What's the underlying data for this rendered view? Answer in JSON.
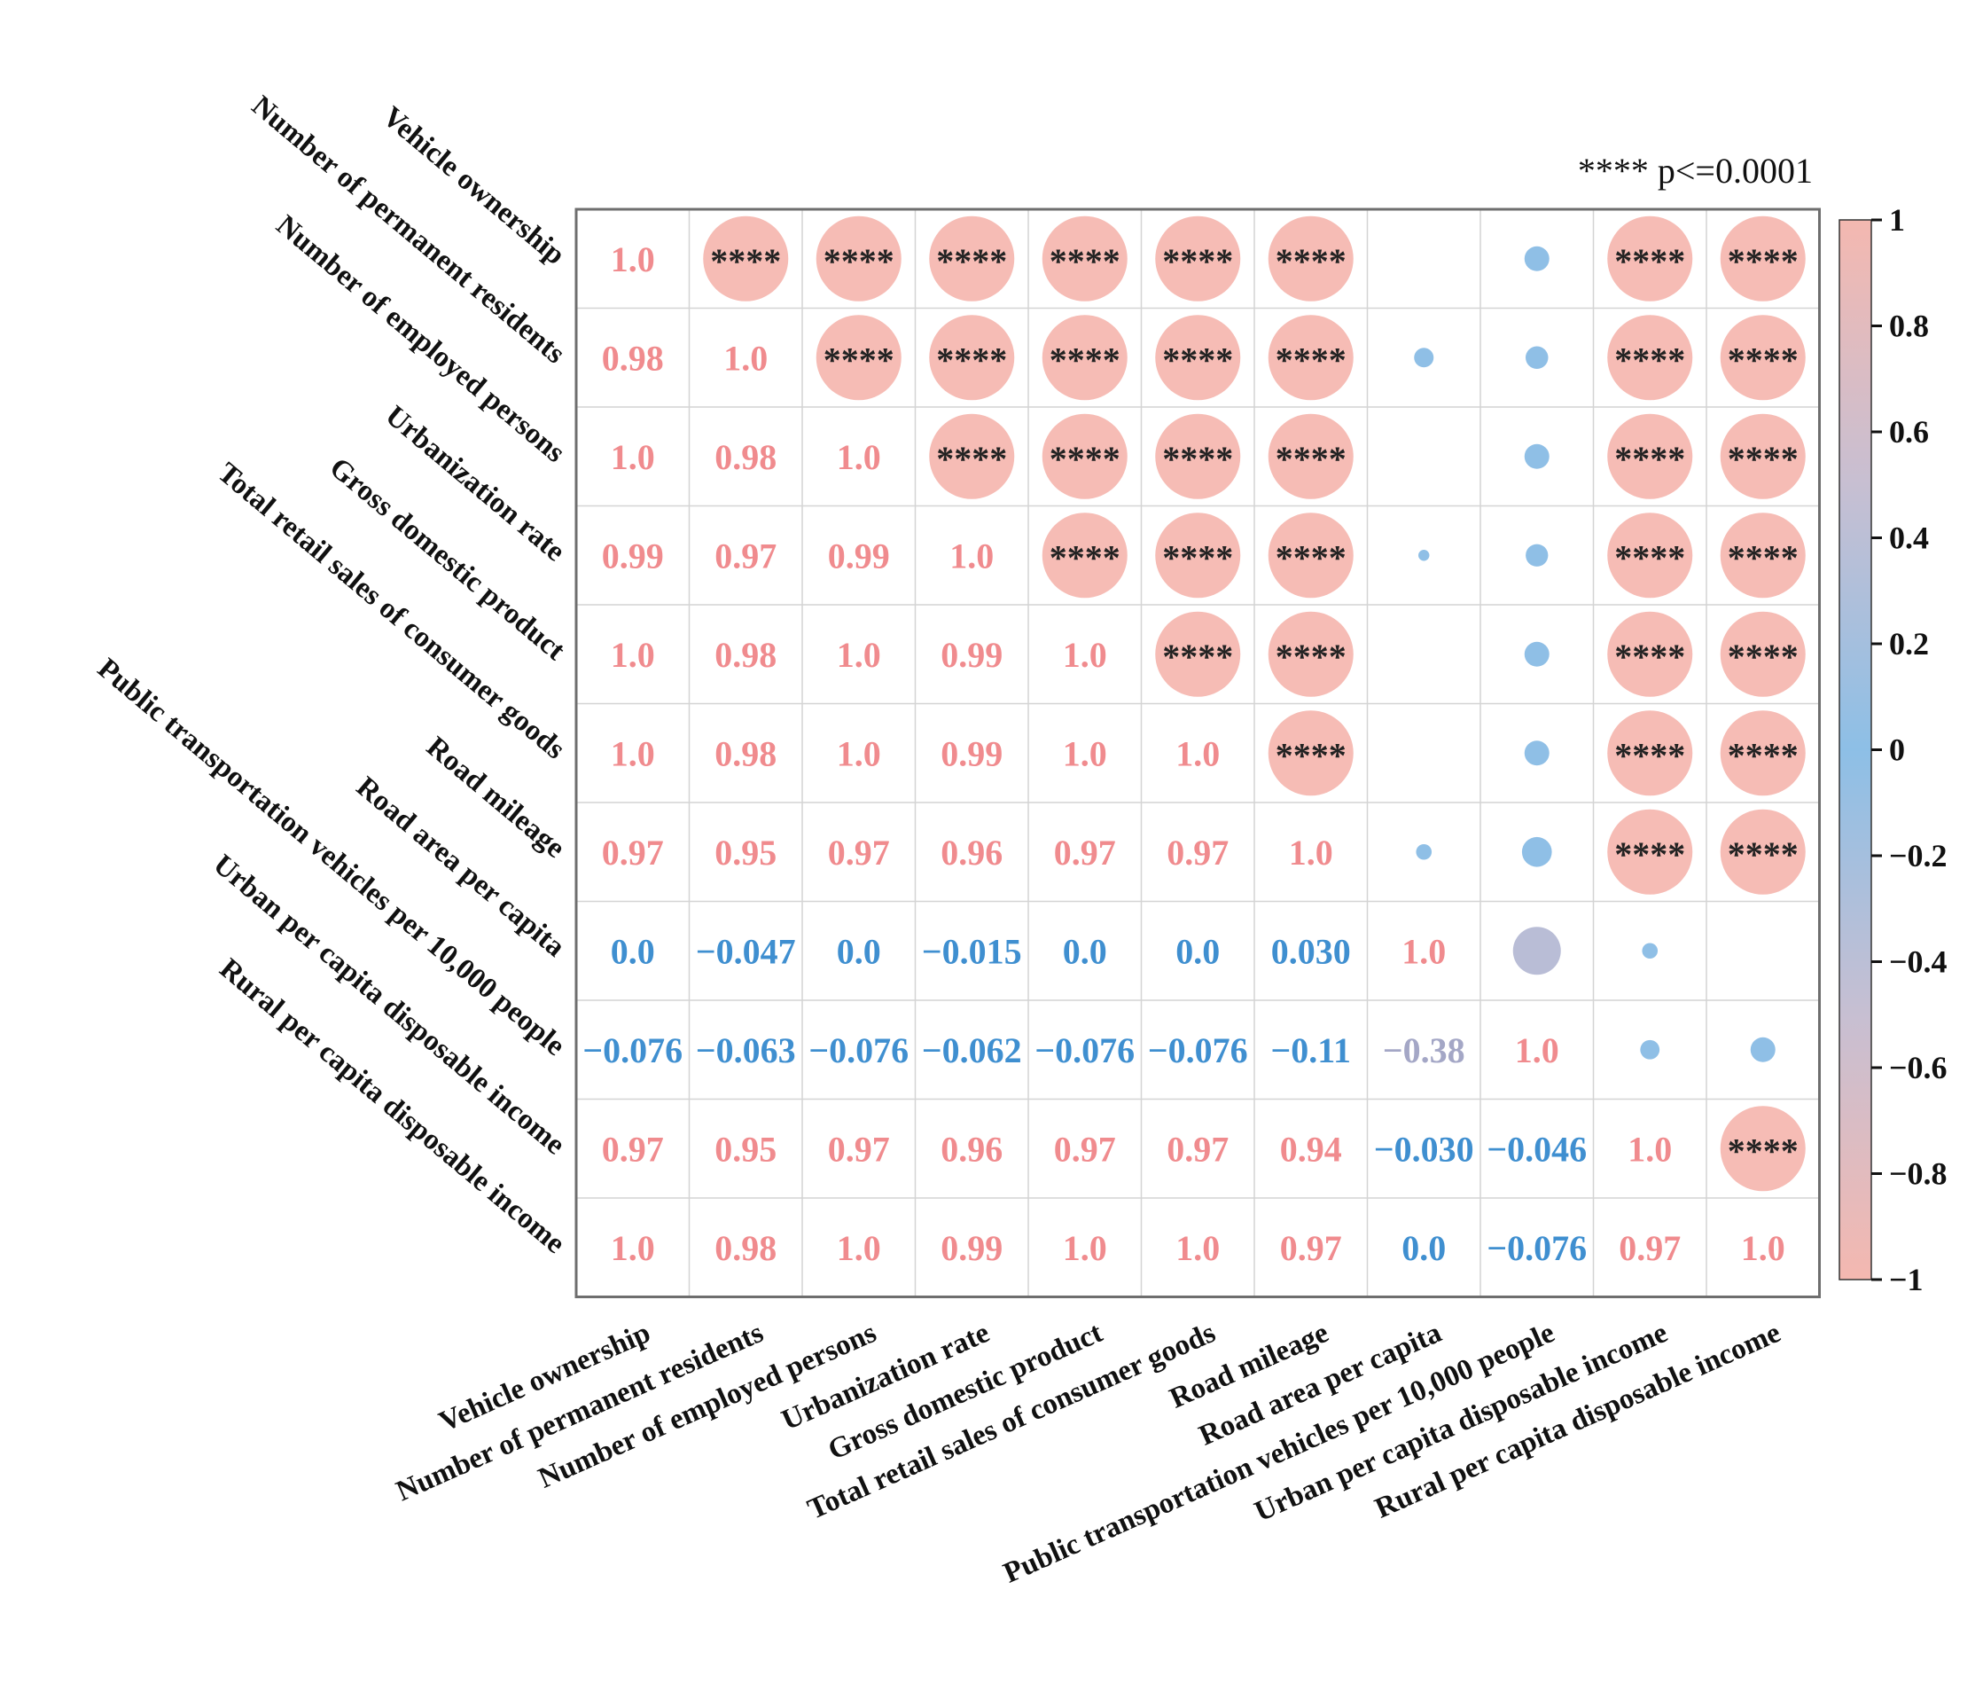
{
  "chart_data": {
    "type": "heatmap",
    "variables": [
      "Vehicle ownership",
      "Number of permanent residents",
      "Number of employed persons",
      "Urbanization rate",
      "Gross domestic product",
      "Total retail sales of consumer goods",
      "Road mileage",
      "Road area per capita",
      "Public transportation vehicles per 10,000 people",
      "Urban per capita disposable income",
      "Rural per capita disposable income"
    ],
    "lower_labels": [
      [
        "1.0"
      ],
      [
        "0.98",
        "1.0"
      ],
      [
        "1.0",
        "0.98",
        "1.0"
      ],
      [
        "0.99",
        "0.97",
        "0.99",
        "1.0"
      ],
      [
        "1.0",
        "0.98",
        "1.0",
        "0.99",
        "1.0"
      ],
      [
        "1.0",
        "0.98",
        "1.0",
        "0.99",
        "1.0",
        "1.0"
      ],
      [
        "0.97",
        "0.95",
        "0.97",
        "0.96",
        "0.97",
        "0.97",
        "1.0"
      ],
      [
        "0.0",
        "−0.047",
        "0.0",
        "−0.015",
        "0.0",
        "0.0",
        "0.030",
        "1.0"
      ],
      [
        "−0.076",
        "−0.063",
        "−0.076",
        "−0.062",
        "−0.076",
        "−0.076",
        "−0.11",
        "−0.38",
        "1.0"
      ],
      [
        "0.97",
        "0.95",
        "0.97",
        "0.96",
        "0.97",
        "0.97",
        "0.94",
        "−0.030",
        "−0.046",
        "1.0"
      ],
      [
        "1.0",
        "0.98",
        "1.0",
        "0.99",
        "1.0",
        "1.0",
        "0.97",
        "0.0",
        "−0.076",
        "0.97",
        "1.0"
      ]
    ],
    "correlation": [
      [
        1.0,
        0.98,
        1.0,
        0.99,
        1.0,
        1.0,
        0.97,
        0.0,
        -0.076,
        0.97,
        1.0
      ],
      [
        0.98,
        1.0,
        0.98,
        0.97,
        0.98,
        0.98,
        0.95,
        -0.047,
        -0.063,
        0.95,
        0.98
      ],
      [
        1.0,
        0.98,
        1.0,
        0.99,
        1.0,
        1.0,
        0.97,
        0.0,
        -0.076,
        0.97,
        1.0
      ],
      [
        0.99,
        0.97,
        0.99,
        1.0,
        0.99,
        0.99,
        0.96,
        -0.015,
        -0.062,
        0.96,
        0.99
      ],
      [
        1.0,
        0.98,
        1.0,
        0.99,
        1.0,
        1.0,
        0.97,
        0.0,
        -0.076,
        0.97,
        1.0
      ],
      [
        1.0,
        0.98,
        1.0,
        0.99,
        1.0,
        1.0,
        0.97,
        0.0,
        -0.076,
        0.97,
        1.0
      ],
      [
        0.97,
        0.95,
        0.97,
        0.96,
        0.97,
        0.97,
        1.0,
        0.03,
        -0.11,
        0.94,
        0.97
      ],
      [
        0.0,
        -0.047,
        0.0,
        -0.015,
        0.0,
        0.0,
        0.03,
        1.0,
        -0.38,
        -0.03,
        0.0
      ],
      [
        -0.076,
        -0.063,
        -0.076,
        -0.062,
        -0.076,
        -0.076,
        -0.11,
        -0.38,
        1.0,
        -0.046,
        -0.076
      ],
      [
        0.97,
        0.95,
        0.97,
        0.96,
        0.97,
        0.97,
        0.94,
        -0.03,
        -0.046,
        1.0,
        0.97
      ],
      [
        1.0,
        0.98,
        1.0,
        0.99,
        1.0,
        1.0,
        0.97,
        0.0,
        -0.076,
        0.97,
        1.0
      ]
    ],
    "significance_marker": "****",
    "significance_note": "**** p<=0.0001",
    "colorbar": {
      "range": [
        -1,
        1
      ],
      "ticks": [
        "1",
        "0.8",
        "0.6",
        "0.4",
        "0.2",
        "0",
        "−0.2",
        "−0.4",
        "−0.6",
        "−0.8",
        "−1"
      ],
      "colors": [
        "#f4b8b0",
        "#c7bfd2",
        "#8dbfe6",
        "#c7bfd2",
        "#f4b8b0"
      ]
    },
    "colors": {
      "positive_text": "#f08b8e",
      "negative_text": "#3f8fd0",
      "circle_strong": "#f6bcb5",
      "circle_weak": "#8fbfe6",
      "circle_mid": "#b9bdd6",
      "grid": "#d4d4d4",
      "frame": "#6e6e6e"
    },
    "grid": true
  }
}
